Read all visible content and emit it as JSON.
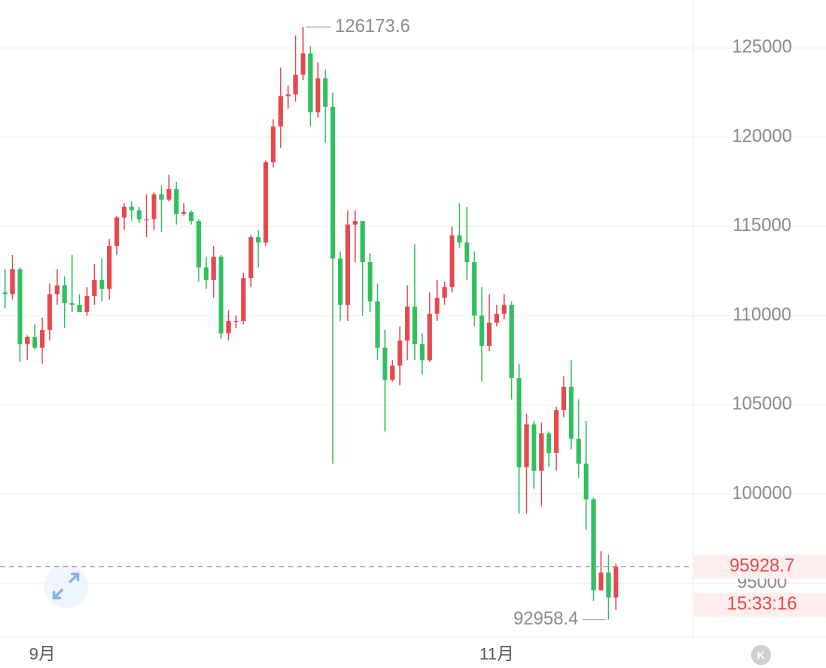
{
  "chart_data": {
    "type": "candlestick",
    "categories": [
      null,
      null,
      null,
      null,
      null,
      "9月",
      null,
      null,
      null,
      null,
      null,
      null,
      null,
      null,
      null,
      null,
      null,
      null,
      null,
      null,
      null,
      null,
      null,
      null,
      null,
      null,
      null,
      null,
      null,
      null,
      null,
      null,
      null,
      null,
      null,
      null,
      null,
      null,
      null,
      null,
      null,
      null,
      null,
      null,
      null,
      null,
      null,
      null,
      null,
      null,
      null,
      null,
      null,
      null,
      null,
      null,
      null,
      null,
      null,
      null,
      null,
      null,
      null,
      null,
      null,
      null,
      "11月",
      null,
      null,
      null,
      null,
      null,
      null,
      null,
      null,
      null,
      null,
      null,
      null,
      null,
      null,
      null,
      null
    ],
    "open": [
      111300,
      111200,
      112600,
      108400,
      108800,
      108200,
      109200,
      111200,
      111700,
      110700,
      110600,
      110200,
      111100,
      112000,
      111500,
      113900,
      115500,
      116100,
      115900,
      115400,
      115400,
      116800,
      116500,
      117100,
      115700,
      115800,
      115300,
      112700,
      112000,
      113300,
      109000,
      109700,
      109700,
      112100,
      114400,
      114100,
      118600,
      120600,
      122300,
      122400,
      123500,
      124700,
      121400,
      123300,
      121700,
      113200,
      110600,
      115100,
      115300,
      113000,
      110800,
      108200,
      106400,
      107200,
      108600,
      110500,
      108400,
      107500,
      110100,
      111000,
      111600,
      114500,
      114100,
      113000,
      110000,
      108300,
      109600,
      110100,
      110600,
      106500,
      101500,
      103900,
      101300,
      103400,
      102300,
      104700,
      106000,
      103100,
      101700,
      99700,
      94600,
      95600,
      94200
    ],
    "high": [
      112600,
      113400,
      112700,
      108900,
      109500,
      109900,
      111800,
      112600,
      112200,
      113400,
      111200,
      111600,
      112900,
      113200,
      114300,
      115600,
      116300,
      116400,
      116100,
      116800,
      116900,
      117300,
      117900,
      117500,
      116300,
      115900,
      115400,
      113300,
      113900,
      113400,
      110300,
      110000,
      112400,
      114500,
      114800,
      118700,
      121000,
      123900,
      122900,
      125700,
      126173.6,
      125100,
      124200,
      123800,
      122500,
      113600,
      115900,
      115900,
      115300,
      113500,
      111800,
      109200,
      107500,
      109400,
      111700,
      114000,
      109000,
      111300,
      112000,
      111900,
      115000,
      116300,
      116100,
      113600,
      111600,
      111200,
      110600,
      111200,
      110800,
      107300,
      104500,
      104100,
      104000,
      103500,
      104900,
      106600,
      107500,
      105300,
      104100,
      99800,
      96800,
      96600,
      96100
    ],
    "low": [
      110400,
      110900,
      107400,
      107500,
      108100,
      107300,
      108600,
      110600,
      109300,
      110200,
      110200,
      110000,
      110600,
      110800,
      110900,
      113400,
      114800,
      115300,
      115200,
      114400,
      114800,
      114700,
      116400,
      115100,
      115600,
      115100,
      111900,
      111500,
      111000,
      108700,
      108600,
      109300,
      109500,
      111600,
      112700,
      113900,
      118300,
      119400,
      121600,
      122000,
      123200,
      120600,
      121100,
      119700,
      101700,
      109700,
      109700,
      113000,
      110000,
      110200,
      107500,
      103500,
      106300,
      106100,
      107500,
      107500,
      106700,
      107400,
      109700,
      110600,
      111300,
      113800,
      112000,
      109400,
      106300,
      108000,
      109400,
      109800,
      105300,
      98900,
      98900,
      100300,
      99300,
      101500,
      101300,
      104300,
      102500,
      100900,
      98000,
      94000,
      94600,
      92958.4,
      93500
    ],
    "close": [
      111200,
      112600,
      108400,
      108800,
      108200,
      109200,
      111200,
      111700,
      110700,
      110600,
      110200,
      111100,
      112000,
      111500,
      113900,
      115500,
      116100,
      115900,
      115400,
      115400,
      116800,
      116500,
      117100,
      115700,
      115800,
      115300,
      112700,
      112000,
      113300,
      109000,
      109700,
      109700,
      112100,
      114400,
      114100,
      118600,
      120600,
      122300,
      122400,
      123500,
      124700,
      121400,
      123300,
      121700,
      113200,
      110600,
      115100,
      115300,
      113000,
      110800,
      108200,
      106400,
      107200,
      108600,
      110500,
      108400,
      107500,
      110100,
      111000,
      111600,
      114500,
      114100,
      113000,
      110000,
      108300,
      109600,
      110100,
      110600,
      106500,
      101500,
      103900,
      101300,
      103400,
      102300,
      104700,
      106000,
      103100,
      101700,
      99700,
      94600,
      95600,
      94200,
      95928.7
    ],
    "up_color": "#e5474c",
    "down_color": "#2fbf5f",
    "ylim": [
      91985,
      127690
    ],
    "yticks": [
      95000,
      100000,
      105000,
      110000,
      115000,
      120000,
      125000
    ],
    "grid": true,
    "annotations": [
      {
        "label": "126173.6",
        "value": 126173.6
      },
      {
        "label": "92958.4",
        "value": 92958.4
      }
    ],
    "last_price": {
      "label": "95928.7",
      "value": 95928.7,
      "time": "15:33:16"
    },
    "k_button": "K"
  }
}
